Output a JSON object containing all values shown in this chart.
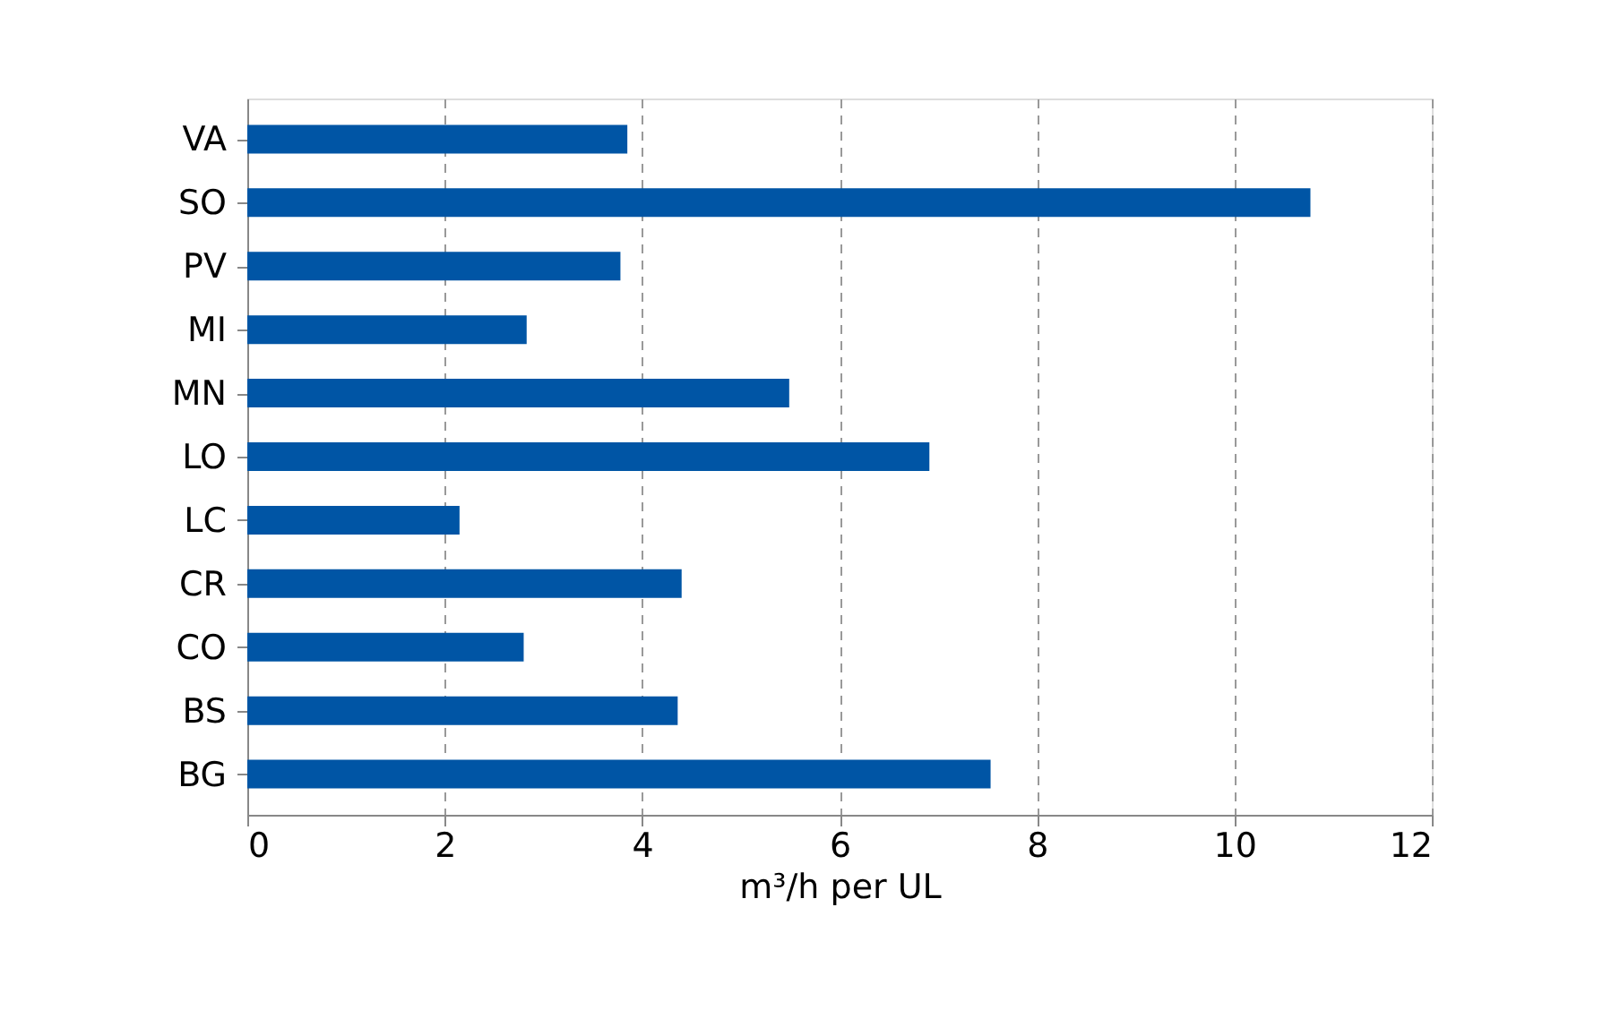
{
  "chart_data": {
    "type": "bar",
    "orientation": "horizontal",
    "xlabel": "m³/h per UL",
    "categories": [
      "VA",
      "SO",
      "PV",
      "MI",
      "MN",
      "LO",
      "LC",
      "CR",
      "CO",
      "BS",
      "BG"
    ],
    "values": [
      3.85,
      10.77,
      3.78,
      2.83,
      5.49,
      6.91,
      2.15,
      4.4,
      2.8,
      4.36,
      7.53
    ],
    "color": "#0055a5",
    "xlim": [
      0,
      12
    ],
    "xticks": [
      0,
      2,
      4,
      6,
      8,
      10,
      12
    ],
    "grid": "x"
  }
}
